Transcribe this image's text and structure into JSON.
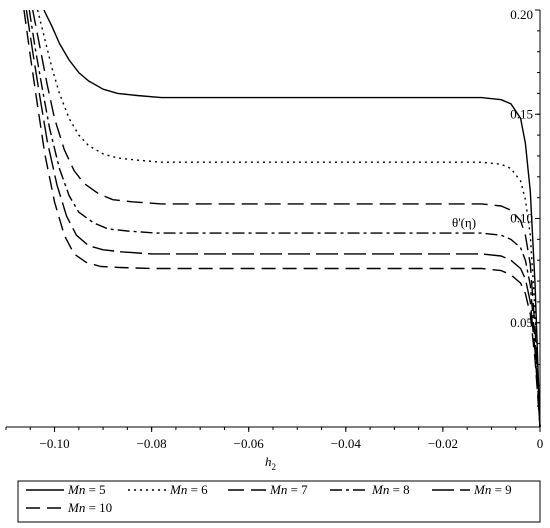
{
  "chart_data": {
    "type": "line",
    "title": "",
    "xlabel": "h",
    "xlabel_subscript": "2",
    "ylabel": "θ'(η)",
    "xlim": [
      -0.11,
      0
    ],
    "ylim": [
      0,
      0.2
    ],
    "x_ticks": [
      -0.1,
      -0.08,
      -0.06,
      -0.04,
      -0.02,
      0
    ],
    "x_tick_labels": [
      "−0.10",
      "−0.08",
      "−0.06",
      "−0.04",
      "−0.02",
      "0"
    ],
    "y_ticks": [
      0.05,
      0.1,
      0.15,
      0.2
    ],
    "y_tick_labels": [
      "0.05",
      "0.10",
      "0.15",
      "0.20"
    ],
    "y_axis_position": "right",
    "grid": false,
    "legend_position": "bottom",
    "series": [
      {
        "name": "Mn = 5",
        "dash": "solid",
        "plateau": 0.158,
        "x": [
          -0.1022,
          -0.1005,
          -0.099,
          -0.097,
          -0.095,
          -0.093,
          -0.09,
          -0.087,
          -0.083,
          -0.078,
          -0.07,
          -0.05,
          -0.03,
          -0.02,
          -0.012,
          -0.008,
          -0.006,
          -0.004,
          -0.003,
          -0.002,
          -0.001,
          0
        ],
        "y": [
          0.2,
          0.192,
          0.184,
          0.176,
          0.17,
          0.166,
          0.162,
          0.16,
          0.159,
          0.158,
          0.158,
          0.158,
          0.158,
          0.158,
          0.158,
          0.157,
          0.155,
          0.148,
          0.136,
          0.113,
          0.068,
          0.0
        ]
      },
      {
        "name": "Mn = 6",
        "dash": "dotted",
        "plateau": 0.127,
        "x": [
          -0.1035,
          -0.102,
          -0.1005,
          -0.099,
          -0.097,
          -0.095,
          -0.093,
          -0.09,
          -0.087,
          -0.083,
          -0.078,
          -0.07,
          -0.05,
          -0.03,
          -0.02,
          -0.012,
          -0.008,
          -0.006,
          -0.004,
          -0.003,
          -0.002,
          -0.001,
          0
        ],
        "y": [
          0.2,
          0.186,
          0.172,
          0.16,
          0.148,
          0.14,
          0.135,
          0.131,
          0.129,
          0.128,
          0.127,
          0.127,
          0.127,
          0.127,
          0.127,
          0.127,
          0.126,
          0.124,
          0.118,
          0.109,
          0.092,
          0.055,
          0.0
        ]
      },
      {
        "name": "Mn = 7",
        "dash": "long-dash",
        "plateau": 0.107,
        "x": [
          -0.1045,
          -0.103,
          -0.1015,
          -0.1,
          -0.098,
          -0.096,
          -0.094,
          -0.091,
          -0.088,
          -0.084,
          -0.078,
          -0.07,
          -0.05,
          -0.03,
          -0.02,
          -0.012,
          -0.008,
          -0.006,
          -0.004,
          -0.003,
          -0.002,
          -0.001,
          0
        ],
        "y": [
          0.2,
          0.182,
          0.164,
          0.148,
          0.133,
          0.123,
          0.117,
          0.112,
          0.109,
          0.108,
          0.107,
          0.107,
          0.107,
          0.107,
          0.107,
          0.107,
          0.106,
          0.104,
          0.099,
          0.092,
          0.078,
          0.047,
          0.0
        ]
      },
      {
        "name": "Mn = 8",
        "dash": "dash-dot",
        "plateau": 0.093,
        "x": [
          -0.1052,
          -0.104,
          -0.1025,
          -0.101,
          -0.099,
          -0.097,
          -0.095,
          -0.092,
          -0.089,
          -0.085,
          -0.079,
          -0.07,
          -0.05,
          -0.03,
          -0.02,
          -0.012,
          -0.008,
          -0.006,
          -0.004,
          -0.003,
          -0.002,
          -0.001,
          0
        ],
        "y": [
          0.2,
          0.182,
          0.162,
          0.143,
          0.124,
          0.111,
          0.103,
          0.098,
          0.095,
          0.094,
          0.093,
          0.093,
          0.093,
          0.093,
          0.093,
          0.093,
          0.092,
          0.09,
          0.086,
          0.08,
          0.068,
          0.041,
          0.0
        ]
      },
      {
        "name": "Mn = 9",
        "dash": "long-short",
        "plateau": 0.083,
        "x": [
          -0.1058,
          -0.1045,
          -0.103,
          -0.1015,
          -0.0995,
          -0.0975,
          -0.0955,
          -0.093,
          -0.09,
          -0.086,
          -0.08,
          -0.07,
          -0.05,
          -0.03,
          -0.02,
          -0.012,
          -0.008,
          -0.006,
          -0.004,
          -0.003,
          -0.002,
          -0.001,
          0
        ],
        "y": [
          0.2,
          0.18,
          0.158,
          0.137,
          0.116,
          0.101,
          0.092,
          0.087,
          0.085,
          0.084,
          0.083,
          0.083,
          0.083,
          0.083,
          0.083,
          0.083,
          0.082,
          0.08,
          0.076,
          0.071,
          0.06,
          0.036,
          0.0
        ]
      },
      {
        "name": "Mn = 10",
        "dash": "dashed",
        "plateau": 0.076,
        "x": [
          -0.1063,
          -0.105,
          -0.1035,
          -0.102,
          -0.1,
          -0.098,
          -0.096,
          -0.0935,
          -0.0905,
          -0.0865,
          -0.08,
          -0.07,
          -0.05,
          -0.03,
          -0.02,
          -0.012,
          -0.008,
          -0.006,
          -0.004,
          -0.003,
          -0.002,
          -0.001,
          0
        ],
        "y": [
          0.2,
          0.178,
          0.154,
          0.131,
          0.108,
          0.092,
          0.083,
          0.079,
          0.077,
          0.0765,
          0.076,
          0.076,
          0.076,
          0.076,
          0.076,
          0.076,
          0.075,
          0.073,
          0.069,
          0.064,
          0.054,
          0.032,
          0.0
        ]
      }
    ]
  }
}
